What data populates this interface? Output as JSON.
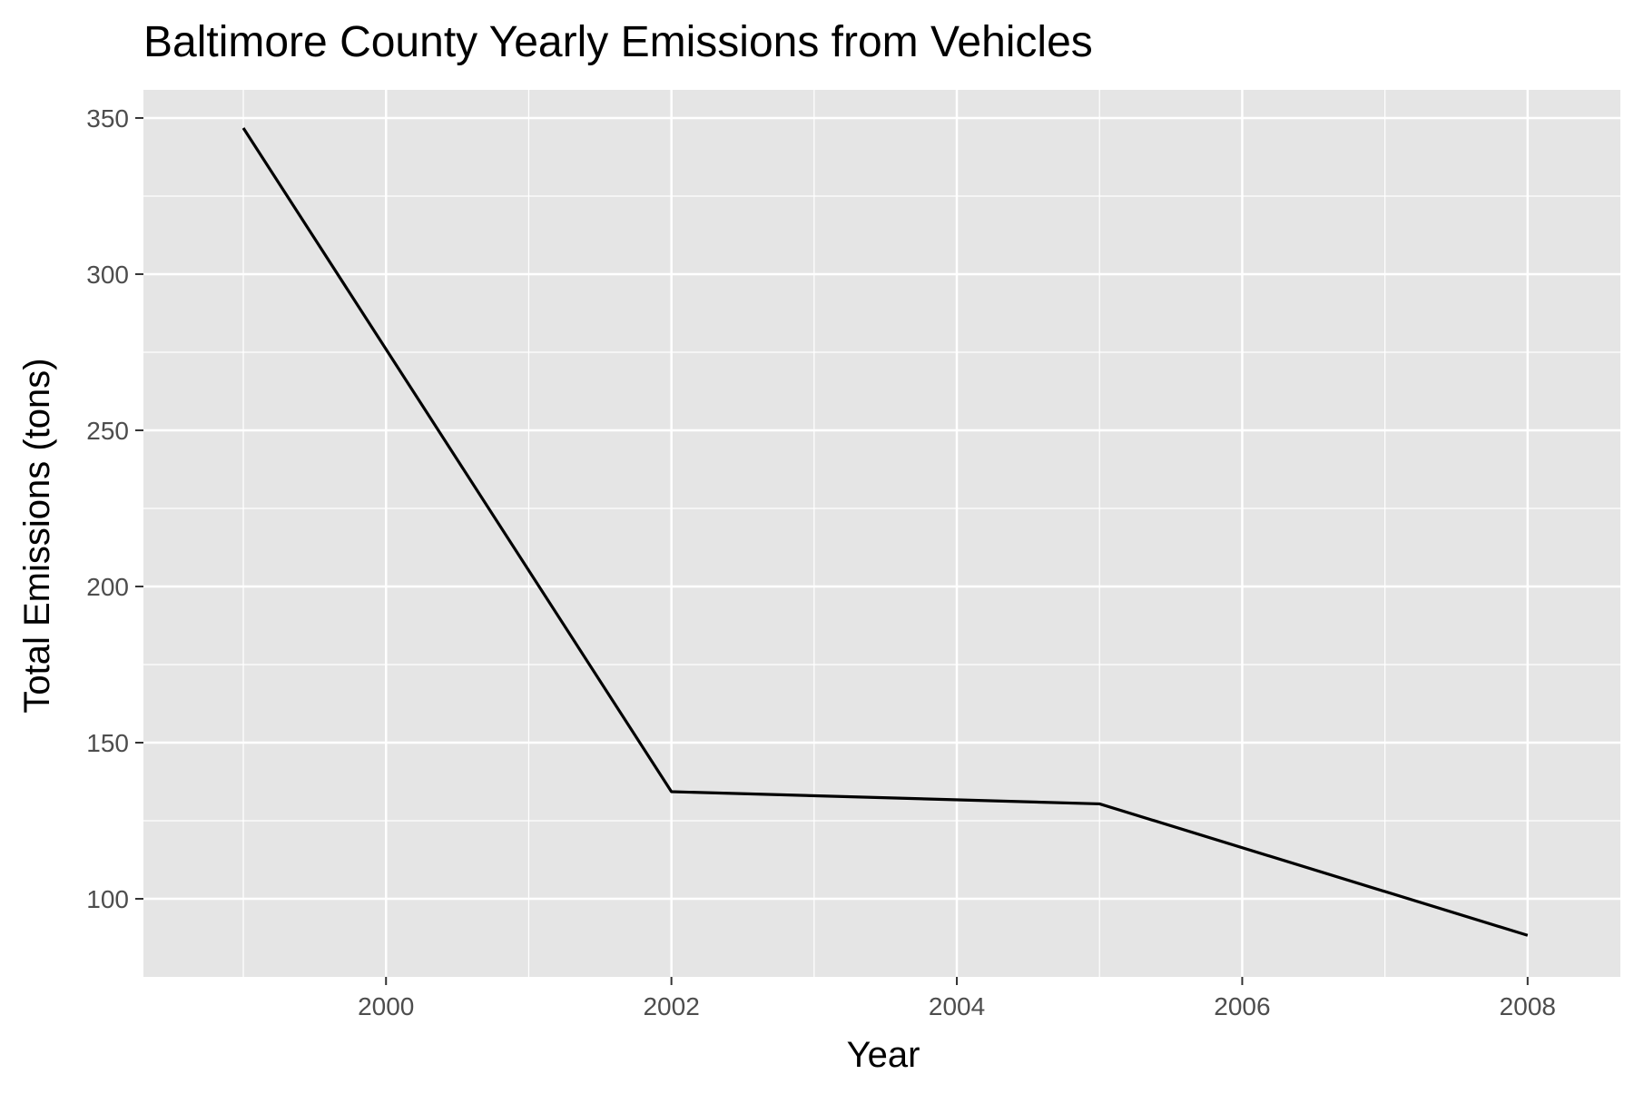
{
  "chart_data": {
    "type": "line",
    "title": "Baltimore County Yearly Emissions from Vehicles",
    "xlabel": "Year",
    "ylabel": "Total Emissions (tons)",
    "x": [
      1999,
      2002,
      2005,
      2008
    ],
    "series": [
      {
        "values": [
          346.8,
          134.3,
          130.4,
          88.3
        ]
      }
    ],
    "xlim": [
      1998.3,
      2008.65
    ],
    "ylim": [
      75,
      359
    ],
    "x_ticks": [
      2000,
      2002,
      2004,
      2006,
      2008
    ],
    "y_ticks": [
      100,
      150,
      200,
      250,
      300,
      350
    ],
    "grid": true,
    "legend": "none",
    "colors": {
      "panel": "#e5e5e5",
      "grid_major": "#ffffff",
      "line": "#000000",
      "tick_label": "#4d4d4d"
    }
  }
}
